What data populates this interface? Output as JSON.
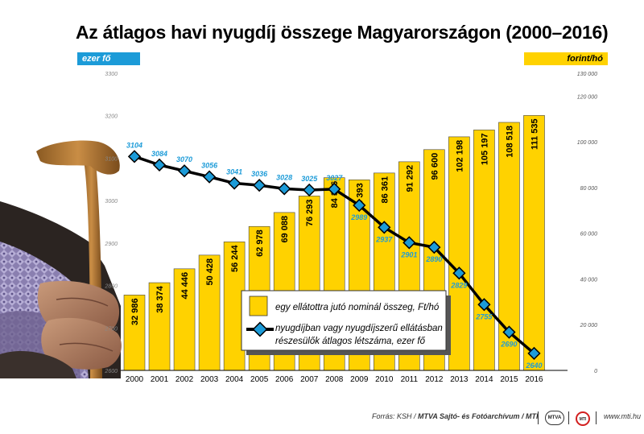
{
  "title": "Az átlagos havi nyugdíj összege Magyarországon (2000–2016)",
  "left_unit": "ezer fő",
  "right_unit": "forint/hó",
  "footer": {
    "source_prefix": "Forrás: KSH / ",
    "source_bold": "MTVA Sajtó- és Fotóarchívum / MTI",
    "logo_left": "MTVA",
    "logo_right": "MTI",
    "url": "www.mti.hu"
  },
  "colors": {
    "bar": "#ffd200",
    "line": "#000000",
    "marker": "#1c9bd8",
    "left_badge": "#1c9bd8",
    "right_badge": "#ffd200"
  },
  "chart_data": {
    "type": "bar+line",
    "categories": [
      "2000",
      "2001",
      "2002",
      "2003",
      "2004",
      "2005",
      "2006",
      "2007",
      "2008",
      "2009",
      "2010",
      "2011",
      "2012",
      "2013",
      "2014",
      "2015",
      "2016"
    ],
    "series": [
      {
        "name": "egy ellátottra jutó nominál összeg, Ft/hó",
        "type": "bar",
        "axis": "right",
        "values": [
          32986,
          38374,
          44446,
          50428,
          56244,
          62978,
          69088,
          76293,
          84306,
          83393,
          86361,
          91292,
          96600,
          102198,
          105197,
          108518,
          111535
        ],
        "labels": [
          "32 986",
          "38 374",
          "44 446",
          "50 428",
          "56 244",
          "62 978",
          "69 088",
          "76 293",
          "84 306",
          "83 393",
          "86 361",
          "91 292",
          "96 600",
          "102 198",
          "105 197",
          "108 518",
          "111 535"
        ]
      },
      {
        "name": "nyugdíjban vagy nyugdíjszerű ellátásban részesülők átlagos létszáma, ezer fő",
        "legend_lines": [
          "nyugdíjban vagy nyugdíjszerű ellátásban",
          "részesülők átlagos létszáma, ezer fő"
        ],
        "type": "line",
        "axis": "left",
        "values": [
          3104,
          3084,
          3070,
          3056,
          3041,
          3036,
          3028,
          3025,
          3027,
          2989,
          2937,
          2901,
          2890,
          2829,
          2755,
          2690,
          2640
        ]
      }
    ],
    "y_left": {
      "min": 2600,
      "max": 3300,
      "ticks": [
        "3300",
        "3200",
        "3100",
        "3000",
        "2900",
        "2800",
        "2700",
        "2600"
      ]
    },
    "y_right": {
      "min": 0,
      "max": 130000,
      "ticks": [
        "130 000",
        "120 000",
        "100 000",
        "80 000",
        "60 000",
        "40 000",
        "20 000",
        "0"
      ]
    },
    "legend_position": "bottom-center",
    "grid": false
  }
}
